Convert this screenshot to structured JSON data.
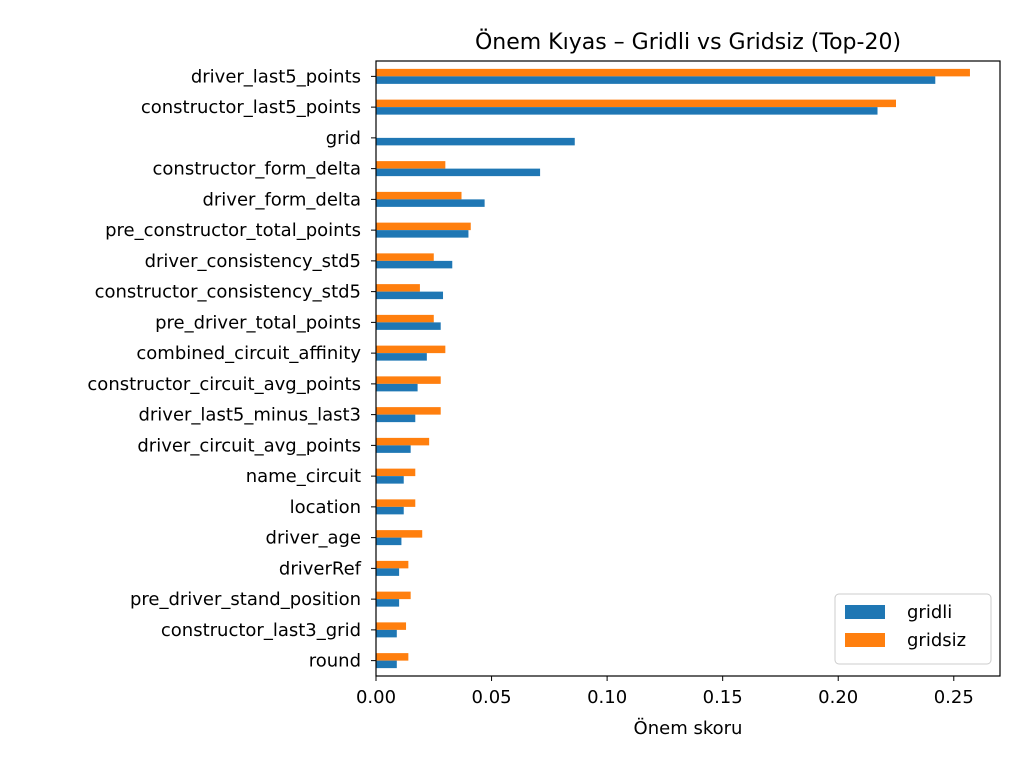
{
  "chart_data": {
    "type": "bar",
    "orientation": "horizontal",
    "title": "Önem Kıyas – Gridli vs Gridsiz (Top-20)",
    "xlabel": "Önem skoru",
    "ylabel": "",
    "xlim": [
      0,
      0.27
    ],
    "x_ticks": [
      0.0,
      0.05,
      0.1,
      0.15,
      0.2,
      0.25
    ],
    "x_tick_labels": [
      "0.00",
      "0.05",
      "0.10",
      "0.15",
      "0.20",
      "0.25"
    ],
    "grid": false,
    "legend_position": "bottom-right",
    "categories": [
      "driver_last5_points",
      "constructor_last5_points",
      "grid",
      "constructor_form_delta",
      "driver_form_delta",
      "pre_constructor_total_points",
      "driver_consistency_std5",
      "constructor_consistency_std5",
      "pre_driver_total_points",
      "combined_circuit_affinity",
      "constructor_circuit_avg_points",
      "driver_last5_minus_last3",
      "driver_circuit_avg_points",
      "name_circuit",
      "location",
      "driver_age",
      "driverRef",
      "pre_driver_stand_position",
      "constructor_last3_grid",
      "round"
    ],
    "series": [
      {
        "name": "gridli",
        "color": "#1f77b4",
        "values": [
          0.242,
          0.217,
          0.086,
          0.071,
          0.047,
          0.04,
          0.033,
          0.029,
          0.028,
          0.022,
          0.018,
          0.017,
          0.015,
          0.012,
          0.012,
          0.011,
          0.01,
          0.01,
          0.009,
          0.009
        ]
      },
      {
        "name": "gridsiz",
        "color": "#ff7f0e",
        "values": [
          0.257,
          0.225,
          0.0,
          0.03,
          0.037,
          0.041,
          0.025,
          0.019,
          0.025,
          0.03,
          0.028,
          0.028,
          0.023,
          0.017,
          0.017,
          0.02,
          0.014,
          0.015,
          0.013,
          0.014
        ]
      }
    ]
  }
}
